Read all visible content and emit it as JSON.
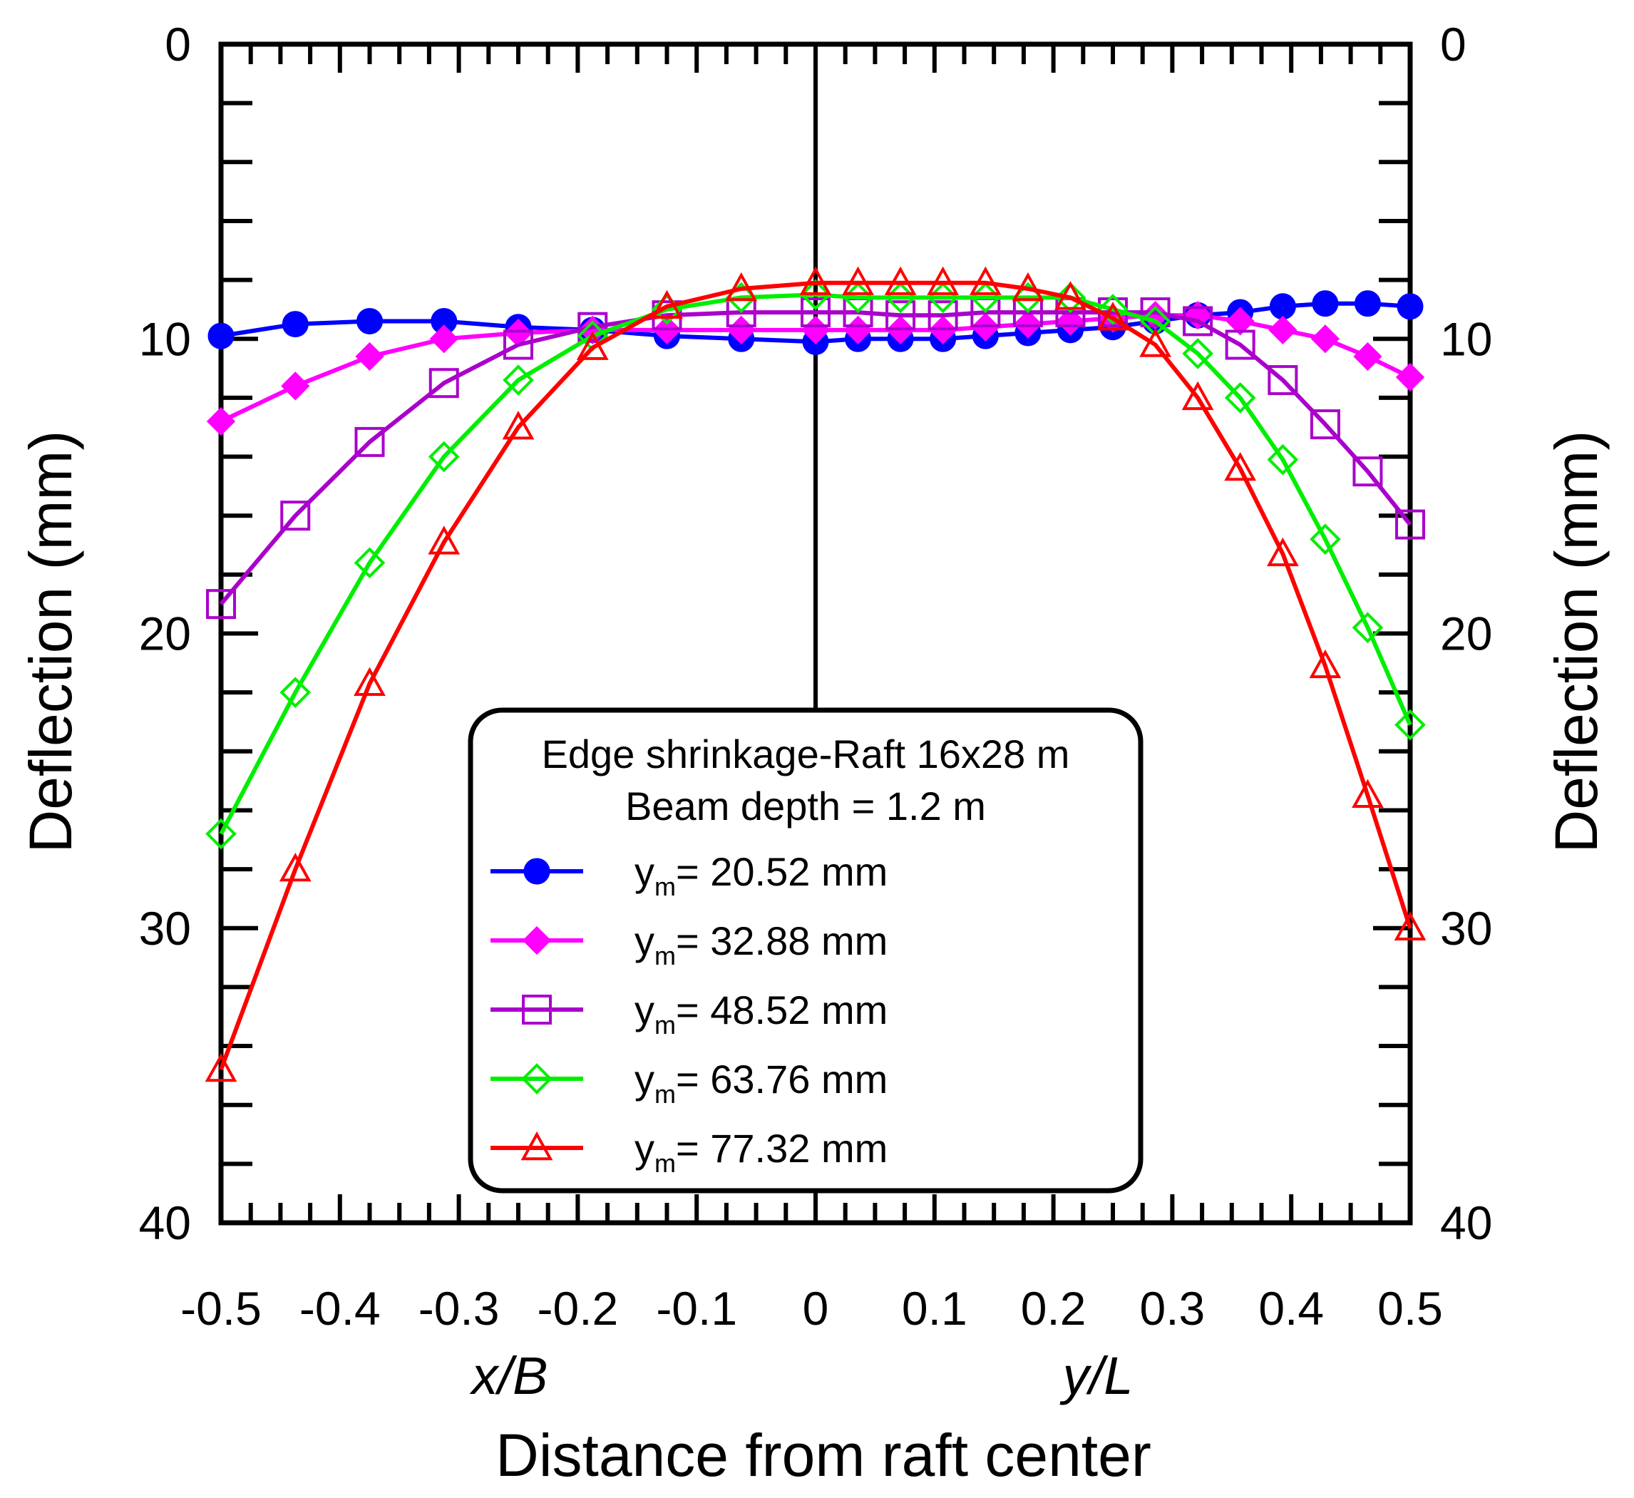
{
  "chart_data": {
    "type": "line",
    "title": "",
    "xlabel": "Distance from raft center",
    "x_sublabels": {
      "left": "x/B",
      "right": "y/L"
    },
    "ylabel_left": "Deflection (mm)",
    "ylabel_right": "Deflection (mm)",
    "xlim": [
      -0.5,
      0.5
    ],
    "ylim": [
      0,
      40
    ],
    "y_inverted": true,
    "x_ticks": [
      "-0.5",
      "-0.4",
      "-0.3",
      "-0.2",
      "-0.1",
      "0",
      "0.1",
      "0.2",
      "0.3",
      "0.4",
      "0.5"
    ],
    "y_ticks_left": [
      "0",
      "10",
      "20",
      "30",
      "40"
    ],
    "y_ticks_right": [
      "0",
      "10",
      "20",
      "30",
      "40"
    ],
    "grid": false,
    "center_line_at": 0,
    "legend": {
      "placement": "lower-center",
      "title_lines": [
        "Edge shrinkage-Raft 16x28 m",
        "Beam depth = 1.2 m"
      ]
    },
    "x": [
      -0.5,
      -0.4375,
      -0.375,
      -0.3125,
      -0.25,
      -0.1875,
      -0.125,
      -0.0625,
      0,
      0.0357,
      0.0714,
      0.1071,
      0.1429,
      0.1786,
      0.2143,
      0.25,
      0.2857,
      0.3214,
      0.3571,
      0.3929,
      0.4286,
      0.4643,
      0.5
    ],
    "series": [
      {
        "name": "ym= 20.52 mm",
        "label_main": "y",
        "label_sub": "m",
        "label_rest": "= 20.52 mm",
        "color": "#0000ff",
        "marker": "filled-circle",
        "y": [
          9.9,
          9.5,
          9.4,
          9.4,
          9.6,
          9.7,
          9.9,
          10.0,
          10.1,
          10.0,
          10.0,
          10.0,
          9.9,
          9.8,
          9.7,
          9.6,
          9.4,
          9.2,
          9.1,
          8.9,
          8.8,
          8.8,
          8.9
        ]
      },
      {
        "name": "ym= 32.88 mm",
        "label_main": "y",
        "label_sub": "m",
        "label_rest": "= 32.88 mm",
        "color": "#ff00ff",
        "marker": "filled-diamond",
        "y": [
          12.8,
          11.6,
          10.6,
          10.0,
          9.8,
          9.7,
          9.7,
          9.7,
          9.7,
          9.7,
          9.7,
          9.7,
          9.6,
          9.5,
          9.4,
          9.3,
          9.2,
          9.2,
          9.4,
          9.7,
          10.0,
          10.6,
          11.3
        ]
      },
      {
        "name": "ym= 48.52 mm",
        "label_main": "y",
        "label_sub": "m",
        "label_rest": "= 48.52 mm",
        "color": "#aa00cc",
        "marker": "open-square",
        "y": [
          19.0,
          16.0,
          13.5,
          11.5,
          10.2,
          9.6,
          9.2,
          9.1,
          9.1,
          9.1,
          9.2,
          9.2,
          9.1,
          9.1,
          9.1,
          9.1,
          9.1,
          9.4,
          10.2,
          11.4,
          12.9,
          14.5,
          16.3
        ]
      },
      {
        "name": "ym= 63.76 mm",
        "label_main": "y",
        "label_sub": "m",
        "label_rest": "= 63.76 mm",
        "color": "#00ee00",
        "marker": "open-diamond",
        "y": [
          26.8,
          22.0,
          17.6,
          14.0,
          11.4,
          9.9,
          9.0,
          8.6,
          8.5,
          8.6,
          8.6,
          8.6,
          8.6,
          8.6,
          8.6,
          9.0,
          9.4,
          10.5,
          12.0,
          14.1,
          16.8,
          19.8,
          23.1
        ]
      },
      {
        "name": "ym= 77.32 mm",
        "label_main": "y",
        "label_sub": "m",
        "label_rest": "= 77.32 mm",
        "color": "#ff0000",
        "marker": "open-triangle",
        "y": [
          34.8,
          28.0,
          21.7,
          16.9,
          13.0,
          10.3,
          8.9,
          8.3,
          8.1,
          8.1,
          8.1,
          8.1,
          8.1,
          8.3,
          8.6,
          9.3,
          10.2,
          12.0,
          14.4,
          17.3,
          21.1,
          25.5,
          30.0
        ]
      }
    ]
  }
}
